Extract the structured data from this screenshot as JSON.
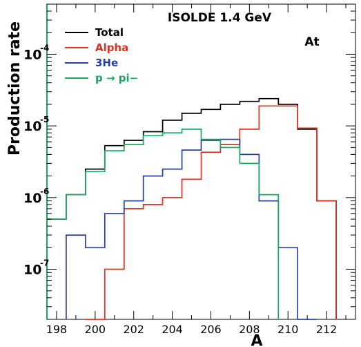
{
  "chart_data": {
    "type": "line",
    "title": "ISOLDE 1.4 GeV",
    "annotation": "At",
    "xlabel": "A",
    "ylabel": "Production rate",
    "xlim": [
      197.5,
      213.5
    ],
    "ylim": [
      2e-08,
      0.0005
    ],
    "yscale": "log",
    "x_ticks": [
      "198",
      "200",
      "202",
      "204",
      "206",
      "208",
      "210",
      "212"
    ],
    "y_ticks": [
      {
        "value": 1e-07,
        "base": "10",
        "exp": "-7"
      },
      {
        "value": 1e-06,
        "base": "10",
        "exp": "-6"
      },
      {
        "value": 1e-05,
        "base": "10",
        "exp": "-5"
      },
      {
        "value": 0.0001,
        "base": "10",
        "exp": "-4"
      }
    ],
    "legend_position": "top-left",
    "style": "step histogram",
    "series": [
      {
        "name": "Total",
        "color": "#000000",
        "x": [
          198,
          199,
          200,
          201,
          202,
          203,
          204,
          205,
          206,
          207,
          208,
          209,
          210,
          211,
          212
        ],
        "values": [
          5e-07,
          1.1e-06,
          2.5e-06,
          5.3e-06,
          6.3e-06,
          8.3e-06,
          1.2e-05,
          1.5e-05,
          1.7e-05,
          2e-05,
          2.2e-05,
          2.4e-05,
          2e-05,
          9e-06,
          9e-07
        ]
      },
      {
        "name": "Alpha",
        "color": "#e03020",
        "x": [
          200,
          201,
          202,
          203,
          204,
          205,
          206,
          207,
          208,
          209,
          210,
          211,
          212
        ],
        "values": [
          1e-08,
          1e-07,
          7e-07,
          8e-07,
          1e-06,
          1.8e-06,
          4.3e-06,
          5.5e-06,
          9e-06,
          1.9e-05,
          1.9e-05,
          9.3e-06,
          9e-07
        ]
      },
      {
        "name": "3He",
        "color": "#2a40a0",
        "x": [
          199,
          200,
          201,
          202,
          203,
          204,
          205,
          206,
          207,
          208,
          209,
          210,
          211
        ],
        "values": [
          3e-07,
          2e-07,
          6e-07,
          9e-07,
          2e-06,
          2.5e-06,
          4.6e-06,
          6.3e-06,
          6.5e-06,
          4e-06,
          9e-07,
          2e-07,
          1e-08
        ]
      },
      {
        "name": "p → pi−",
        "color": "#18a860",
        "x": [
          198,
          199,
          200,
          201,
          202,
          203,
          204,
          205,
          206,
          207,
          208,
          209
        ],
        "values": [
          5e-07,
          1.1e-06,
          2.3e-06,
          4.5e-06,
          5.5e-06,
          7.3e-06,
          8e-06,
          9e-06,
          6.5e-06,
          5e-06,
          3e-06,
          1.1e-06
        ]
      }
    ]
  }
}
